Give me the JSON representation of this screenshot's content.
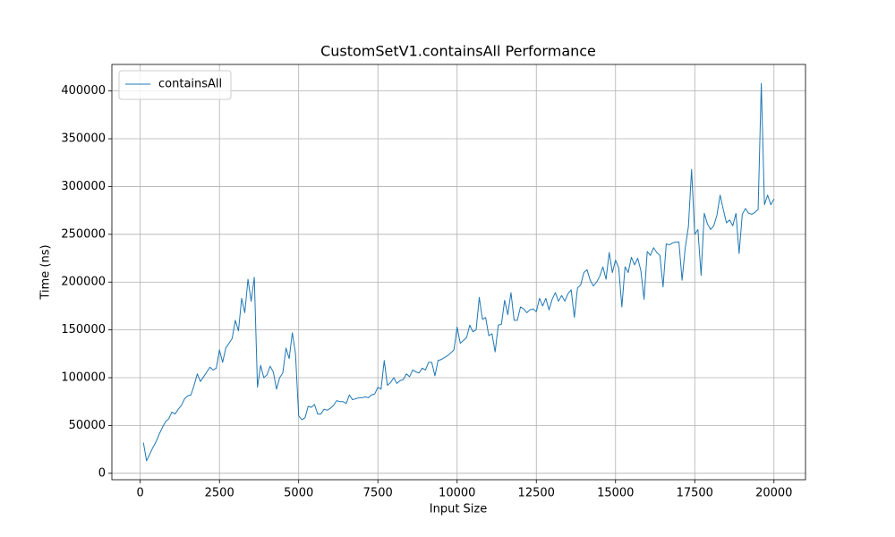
{
  "chart_data": {
    "type": "line",
    "title": "CustomSetV1.containsAll Performance",
    "x_label": "Input Size",
    "y_label": "Time (ns)",
    "x": [
      100,
      200,
      300,
      400,
      500,
      600,
      700,
      800,
      900,
      1000,
      1100,
      1200,
      1300,
      1400,
      1500,
      1600,
      1700,
      1800,
      1900,
      2000,
      2100,
      2200,
      2300,
      2400,
      2500,
      2600,
      2700,
      2800,
      2900,
      3000,
      3100,
      3200,
      3300,
      3400,
      3500,
      3600,
      3700,
      3800,
      3900,
      4000,
      4100,
      4200,
      4300,
      4400,
      4500,
      4600,
      4700,
      4800,
      4900,
      5000,
      5100,
      5200,
      5300,
      5400,
      5500,
      5600,
      5700,
      5800,
      5900,
      6000,
      6100,
      6200,
      6300,
      6400,
      6500,
      6600,
      6700,
      6800,
      6900,
      7000,
      7100,
      7200,
      7300,
      7400,
      7500,
      7600,
      7700,
      7800,
      7900,
      8000,
      8100,
      8200,
      8300,
      8400,
      8500,
      8600,
      8700,
      8800,
      8900,
      9000,
      9100,
      9200,
      9300,
      9400,
      9500,
      9600,
      9700,
      9800,
      9900,
      10000,
      10100,
      10200,
      10300,
      10400,
      10500,
      10600,
      10700,
      10800,
      10900,
      11000,
      11100,
      11200,
      11300,
      11400,
      11500,
      11600,
      11700,
      11800,
      11900,
      12000,
      12100,
      12200,
      12300,
      12400,
      12500,
      12600,
      12700,
      12800,
      12900,
      13000,
      13100,
      13200,
      13300,
      13400,
      13500,
      13600,
      13700,
      13800,
      13900,
      14000,
      14100,
      14200,
      14300,
      14400,
      14500,
      14600,
      14700,
      14800,
      14900,
      15000,
      15100,
      15200,
      15300,
      15400,
      15500,
      15600,
      15700,
      15800,
      15900,
      16000,
      16100,
      16200,
      16300,
      16400,
      16500,
      16600,
      16700,
      16800,
      16900,
      17000,
      17100,
      17200,
      17300,
      17400,
      17500,
      17600,
      17700,
      17800,
      17900,
      18000,
      18100,
      18200,
      18300,
      18400,
      18500,
      18600,
      18700,
      18800,
      18900,
      19000,
      19100,
      19200,
      19300,
      19400,
      19500,
      19600,
      19700,
      19800,
      19900,
      20000
    ],
    "series": [
      {
        "name": "containsAll",
        "color": "#1f77b4",
        "values": [
          32000,
          13000,
          20000,
          27000,
          33000,
          41000,
          48000,
          54000,
          57000,
          64000,
          62000,
          67000,
          71000,
          78000,
          81000,
          82000,
          92000,
          104000,
          96000,
          101000,
          106000,
          111000,
          108000,
          110000,
          129000,
          116000,
          131000,
          136000,
          141000,
          160000,
          149000,
          183000,
          168000,
          203000,
          180000,
          205000,
          90000,
          113000,
          100000,
          103000,
          112000,
          106000,
          88000,
          100000,
          105000,
          131000,
          120000,
          147000,
          125000,
          60000,
          56000,
          58000,
          70000,
          69000,
          72000,
          62000,
          62000,
          67000,
          66000,
          68000,
          71000,
          76000,
          75000,
          75000,
          73000,
          82000,
          77000,
          78000,
          79000,
          79000,
          80000,
          79000,
          82000,
          83000,
          90000,
          88000,
          118000,
          92000,
          95000,
          100000,
          94000,
          97000,
          98000,
          104000,
          101000,
          108000,
          106000,
          105000,
          110000,
          108000,
          116000,
          116000,
          102000,
          118000,
          119000,
          121000,
          123000,
          126000,
          129000,
          153000,
          136000,
          139000,
          142000,
          155000,
          148000,
          150000,
          184000,
          161000,
          163000,
          144000,
          146000,
          127000,
          155000,
          156000,
          181000,
          166000,
          189000,
          160000,
          160000,
          174000,
          172000,
          168000,
          171000,
          172000,
          169000,
          183000,
          175000,
          183000,
          171000,
          182000,
          189000,
          180000,
          186000,
          180000,
          188000,
          192000,
          163000,
          194000,
          197000,
          210000,
          213000,
          202000,
          196000,
          200000,
          206000,
          216000,
          203000,
          231000,
          210000,
          223000,
          215000,
          174000,
          216000,
          210000,
          226000,
          218000,
          225000,
          212000,
          182000,
          232000,
          228000,
          236000,
          231000,
          228000,
          195000,
          240000,
          239000,
          241000,
          242000,
          242000,
          202000,
          236000,
          258000,
          318000,
          250000,
          255000,
          207000,
          272000,
          261000,
          255000,
          259000,
          270000,
          291000,
          276000,
          262000,
          265000,
          259000,
          272000,
          230000,
          271000,
          277000,
          272000,
          271000,
          273000,
          276000,
          408000,
          281000,
          291000,
          281000,
          287000
        ]
      }
    ],
    "xlim": [
      -895,
      20995
    ],
    "ylim": [
      -6750,
      427750
    ],
    "xticks": [
      0,
      2500,
      5000,
      7500,
      10000,
      12500,
      15000,
      17500,
      20000
    ],
    "yticks": [
      0,
      50000,
      100000,
      150000,
      200000,
      250000,
      300000,
      350000,
      400000
    ],
    "grid": true,
    "legend": "upper left"
  }
}
